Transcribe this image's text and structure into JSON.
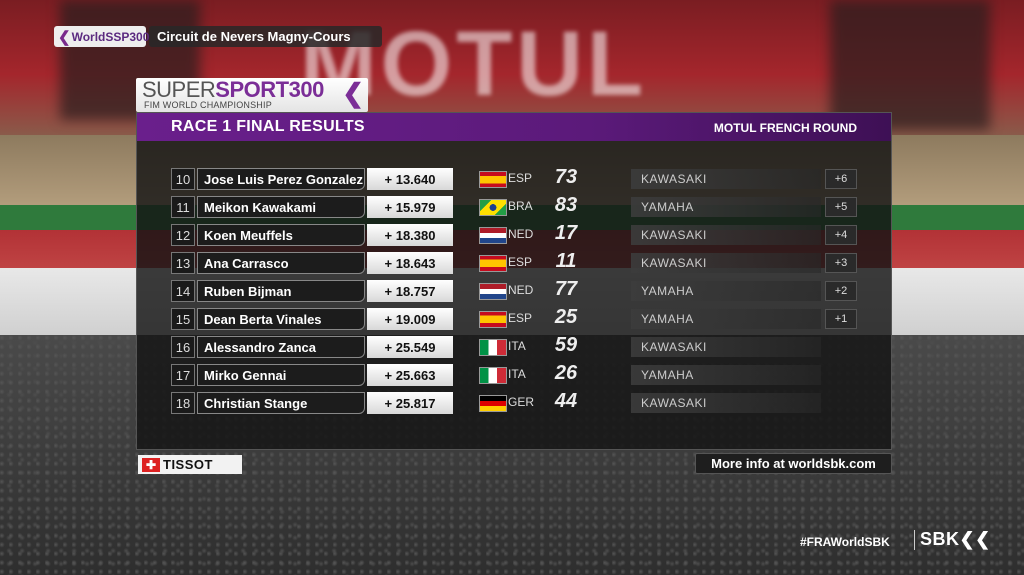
{
  "series_tag": "WorldSSP300",
  "circuit": "Circuit de Nevers Magny-Cours",
  "logo": {
    "super": "SUPER",
    "sport": "SPORT",
    "num": "300",
    "sub": "FIM WORLD CHAMPIONSHIP"
  },
  "panel": {
    "title": "RACE 1 FINAL RESULTS",
    "round": "MOTUL FRENCH ROUND"
  },
  "results": [
    {
      "pos": "10",
      "name": "Jose Luis Perez Gonzalez",
      "gap": "+ 13.640",
      "nat": "ESP",
      "flag": "esp",
      "num": "73",
      "maker": "KAWASAKI",
      "pts": "+6"
    },
    {
      "pos": "11",
      "name": "Meikon Kawakami",
      "gap": "+ 15.979",
      "nat": "BRA",
      "flag": "bra",
      "num": "83",
      "maker": "YAMAHA",
      "pts": "+5"
    },
    {
      "pos": "12",
      "name": "Koen Meuffels",
      "gap": "+ 18.380",
      "nat": "NED",
      "flag": "ned",
      "num": "17",
      "maker": "KAWASAKI",
      "pts": "+4"
    },
    {
      "pos": "13",
      "name": "Ana Carrasco",
      "gap": "+ 18.643",
      "nat": "ESP",
      "flag": "esp",
      "num": "11",
      "maker": "KAWASAKI",
      "pts": "+3"
    },
    {
      "pos": "14",
      "name": "Ruben Bijman",
      "gap": "+ 18.757",
      "nat": "NED",
      "flag": "ned",
      "num": "77",
      "maker": "YAMAHA",
      "pts": "+2"
    },
    {
      "pos": "15",
      "name": "Dean Berta Vinales",
      "gap": "+ 19.009",
      "nat": "ESP",
      "flag": "esp",
      "num": "25",
      "maker": "YAMAHA",
      "pts": "+1"
    },
    {
      "pos": "16",
      "name": "Alessandro Zanca",
      "gap": "+ 25.549",
      "nat": "ITA",
      "flag": "ita",
      "num": "59",
      "maker": "KAWASAKI",
      "pts": ""
    },
    {
      "pos": "17",
      "name": "Mirko Gennai",
      "gap": "+ 25.663",
      "nat": "ITA",
      "flag": "ita",
      "num": "26",
      "maker": "YAMAHA",
      "pts": ""
    },
    {
      "pos": "18",
      "name": "Christian Stange",
      "gap": "+ 25.817",
      "nat": "GER",
      "flag": "ger",
      "num": "44",
      "maker": "KAWASAKI",
      "pts": ""
    }
  ],
  "tissot": "TISSOT",
  "more_info": "More info at worldsbk.com",
  "hashtag": "#FRAWorldSBK",
  "sbk": "SBK",
  "background_text": "MOTUL",
  "colors": {
    "purple": "#6a1f8c",
    "accent": "#7b2e97"
  }
}
